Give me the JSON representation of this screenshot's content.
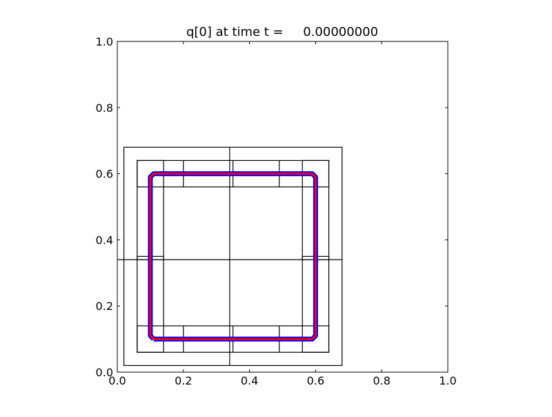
{
  "title": "q[0] at time t =     0.00000000",
  "colors": {
    "background": "#ffffff",
    "axes": "#000000",
    "grid_lines": "#000000",
    "contour_outer": "#0000ff",
    "contour_inner": "#ff0000"
  },
  "chart_data": {
    "type": "line",
    "title": "q[0] at time t =     0.00000000",
    "xlabel": "",
    "ylabel": "",
    "xlim": [
      0.0,
      1.0
    ],
    "ylim": [
      0.0,
      1.0
    ],
    "xticks": [
      "0.0",
      "0.2",
      "0.4",
      "0.6",
      "0.8",
      "1.0"
    ],
    "yticks": [
      "0.0",
      "0.2",
      "0.4",
      "0.6",
      "0.8",
      "1.0"
    ],
    "grid": false,
    "legend": "none",
    "patch_boxes": [
      {
        "x0": 0.02,
        "x1": 0.68,
        "y0": 0.02,
        "y1": 0.68
      },
      {
        "x0": 0.06,
        "x1": 0.64,
        "y0": 0.06,
        "y1": 0.14
      },
      {
        "x0": 0.06,
        "x1": 0.64,
        "y0": 0.56,
        "y1": 0.64
      },
      {
        "x0": 0.06,
        "x1": 0.14,
        "y0": 0.06,
        "y1": 0.64
      },
      {
        "x0": 0.56,
        "x1": 0.64,
        "y0": 0.06,
        "y1": 0.64
      },
      {
        "x0": 0.06,
        "x1": 0.14,
        "y0": 0.34,
        "y1": 0.35
      },
      {
        "x0": 0.56,
        "x1": 0.64,
        "y0": 0.34,
        "y1": 0.35
      }
    ],
    "patch_lines": [
      {
        "x": [
          0.34,
          0.34
        ],
        "y": [
          0.02,
          0.68
        ]
      },
      {
        "x": [
          0.0,
          0.68
        ],
        "y": [
          0.34,
          0.34
        ]
      },
      {
        "x": [
          0.2,
          0.2
        ],
        "y": [
          0.06,
          0.14
        ]
      },
      {
        "x": [
          0.2,
          0.2
        ],
        "y": [
          0.56,
          0.64
        ]
      },
      {
        "x": [
          0.35,
          0.35
        ],
        "y": [
          0.06,
          0.14
        ]
      },
      {
        "x": [
          0.35,
          0.35
        ],
        "y": [
          0.56,
          0.64
        ]
      },
      {
        "x": [
          0.49,
          0.49
        ],
        "y": [
          0.06,
          0.14
        ]
      },
      {
        "x": [
          0.49,
          0.49
        ],
        "y": [
          0.56,
          0.64
        ]
      }
    ],
    "contour": {
      "x": [
        0.11,
        0.59,
        0.6,
        0.6,
        0.59,
        0.11,
        0.1,
        0.1,
        0.11
      ],
      "y": [
        0.1,
        0.1,
        0.11,
        0.59,
        0.6,
        0.6,
        0.59,
        0.11,
        0.1
      ]
    }
  }
}
